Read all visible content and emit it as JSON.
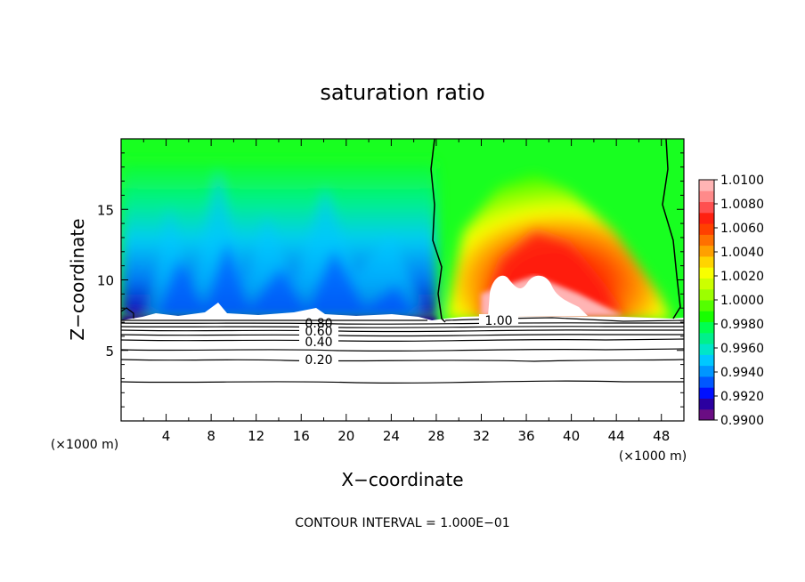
{
  "chart_data": {
    "type": "heatmap",
    "title": "saturation ratio",
    "xlabel": "X−coordinate",
    "ylabel": "Z−coordinate",
    "x_unit": "(×1000 m)",
    "x_unit_right": "(×1000 m)",
    "xlim": [
      0,
      50
    ],
    "ylim": [
      0,
      20
    ],
    "x_ticks": [
      4,
      8,
      12,
      16,
      20,
      24,
      28,
      32,
      36,
      40,
      44,
      48
    ],
    "x_tick_labels": [
      "4",
      "8",
      "12",
      "16",
      "20",
      "24",
      "28",
      "32",
      "36",
      "40",
      "44",
      "48"
    ],
    "y_ticks": [
      5,
      10,
      15
    ],
    "y_tick_labels": [
      "5",
      "10",
      "15"
    ],
    "colorbar": {
      "range": [
        0.99,
        1.01
      ],
      "labels": [
        "1.0100",
        "1.0080",
        "1.0060",
        "1.0040",
        "1.0020",
        "1.0000",
        "0.9980",
        "0.9960",
        "0.9940",
        "0.9920",
        "0.9900"
      ],
      "colors": [
        "#6a0d83",
        "#2b00a0",
        "#0010ff",
        "#0058ff",
        "#0096ff",
        "#00c8ff",
        "#00e6c8",
        "#00f08c",
        "#00ff50",
        "#18ff00",
        "#54ff00",
        "#9cff00",
        "#ccff00",
        "#f8ff00",
        "#ffd400",
        "#ffa000",
        "#ff7000",
        "#ff4000",
        "#ff2010",
        "#ff5050",
        "#ff8a8a",
        "#ffb4b4"
      ]
    },
    "contours": [
      {
        "label": "0.20",
        "z": 4.3
      },
      {
        "label": "0.40",
        "z": 5.5
      },
      {
        "label": "0.60",
        "z": 6.3
      },
      {
        "label": "0.80",
        "z": 6.75
      },
      {
        "label": "1.00",
        "z": 7.2
      }
    ],
    "contour_interval_text": "CONTOUR INTERVAL = 1.000E−01"
  }
}
